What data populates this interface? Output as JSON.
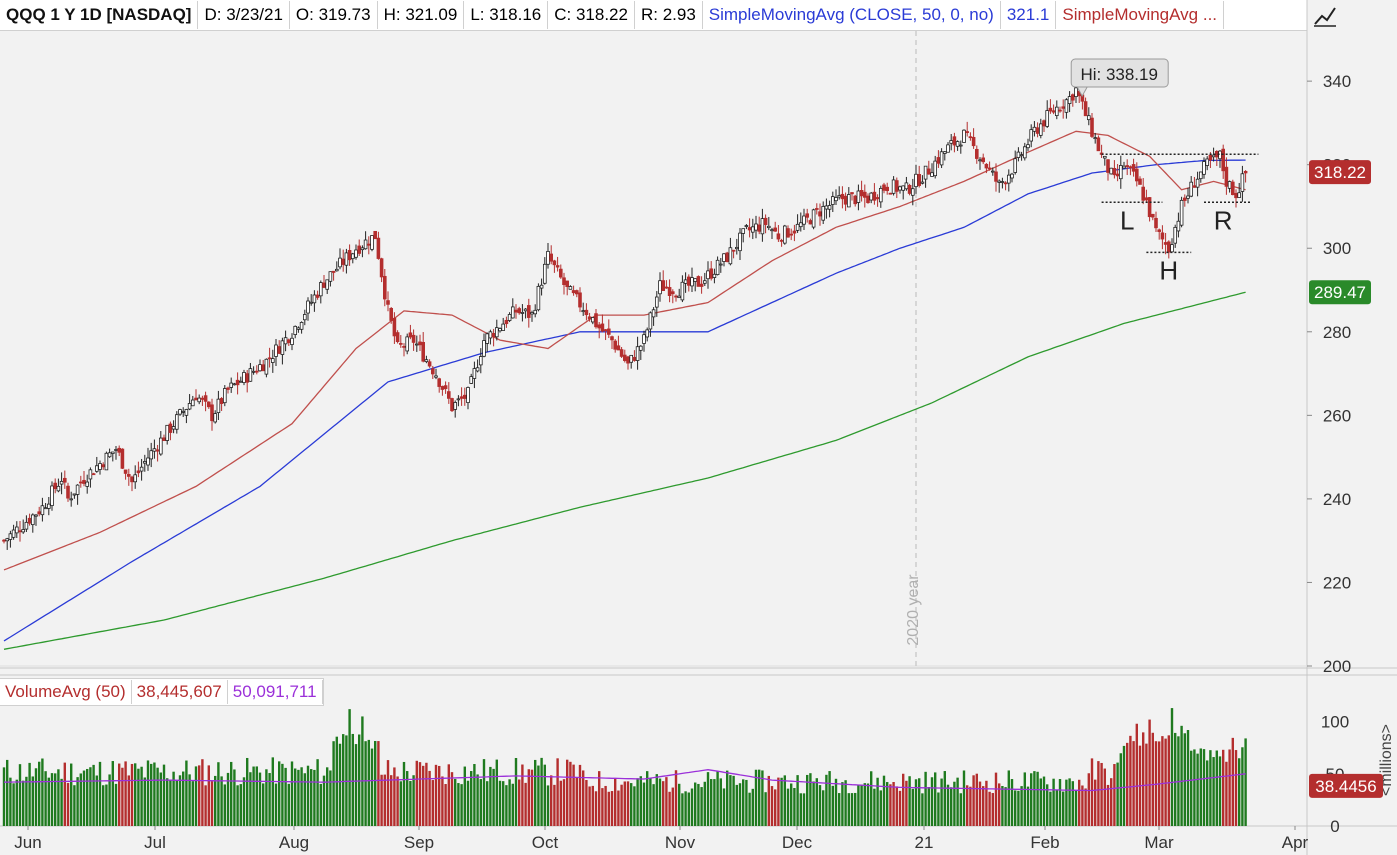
{
  "header": {
    "symbol": "QQQ 1 Y 1D [NASDAQ]",
    "date": "D: 3/23/21",
    "open": "O: 319.73",
    "high": "H: 321.09",
    "low": "L: 318.16",
    "close": "C: 318.22",
    "range": "R: 2.93",
    "sma50_label": "SimpleMovingAvg (CLOSE, 50, 0, no)",
    "sma50_value": "321.1",
    "sma_other_label": "SimpleMovingAvg ..."
  },
  "volume_header": {
    "label": "VolumeAvg (50)",
    "volume": "38,445,607",
    "avg": "50,091,711"
  },
  "colors": {
    "up": "#1f7a1f",
    "down": "#b42e2e",
    "sma_short": "#c0504d",
    "sma50": "#2a3bd6",
    "sma200": "#2e9a2e",
    "vol_avg": "#9b30d9"
  },
  "chart_data": {
    "type": "candlestick",
    "price_axis": {
      "ticks": [
        "340",
        "320",
        "300",
        "280",
        "260",
        "240",
        "220",
        "200"
      ],
      "ylim": [
        200,
        352
      ]
    },
    "volume_axis": {
      "ticks": [
        "100",
        "50",
        "0"
      ],
      "unit": "<millions>",
      "ylim": [
        0,
        115
      ]
    },
    "x_labels": [
      "Jun",
      "Jul",
      "Aug",
      "Sep",
      "Oct",
      "Nov",
      "Dec",
      "21",
      "Feb",
      "Mar",
      "Apr"
    ],
    "year_marker": "2020 year",
    "annotations": {
      "high_label": "Hi: 338.19",
      "high_value": 338.19,
      "pattern_labels": [
        "L",
        "H",
        "R"
      ]
    },
    "price_badges": {
      "last": "318.22",
      "sma200": "289.47",
      "volume": "38.4456"
    },
    "series": [
      {
        "name": "Price",
        "description": "daily candles",
        "anchors": [
          [
            0,
            230
          ],
          [
            12,
            238
          ],
          [
            18,
            245
          ],
          [
            20,
            240
          ],
          [
            25,
            245
          ],
          [
            35,
            252
          ],
          [
            40,
            244
          ],
          [
            45,
            250
          ],
          [
            60,
            265
          ],
          [
            65,
            260
          ],
          [
            70,
            266
          ],
          [
            82,
            273
          ],
          [
            90,
            280
          ],
          [
            100,
            292
          ],
          [
            110,
            300
          ],
          [
            116,
            303
          ],
          [
            120,
            285
          ],
          [
            123,
            276
          ],
          [
            128,
            278
          ],
          [
            135,
            270
          ],
          [
            140,
            262
          ],
          [
            145,
            265
          ],
          [
            150,
            278
          ],
          [
            160,
            285
          ],
          [
            165,
            284
          ],
          [
            170,
            298
          ],
          [
            176,
            290
          ],
          [
            182,
            285
          ],
          [
            186,
            281
          ],
          [
            190,
            278
          ],
          [
            195,
            272
          ],
          [
            200,
            278
          ],
          [
            205,
            291
          ],
          [
            210,
            290
          ],
          [
            218,
            292
          ],
          [
            226,
            298
          ],
          [
            232,
            304
          ],
          [
            238,
            306
          ],
          [
            242,
            303
          ],
          [
            248,
            305
          ],
          [
            255,
            309
          ],
          [
            262,
            312
          ],
          [
            270,
            312
          ],
          [
            276,
            315
          ],
          [
            282,
            314
          ],
          [
            288,
            318
          ],
          [
            295,
            324
          ],
          [
            300,
            327
          ],
          [
            306,
            321
          ],
          [
            311,
            315
          ],
          [
            316,
            320
          ],
          [
            322,
            328
          ],
          [
            328,
            333
          ],
          [
            333,
            336
          ],
          [
            335,
            338
          ],
          [
            338,
            332
          ],
          [
            340,
            328
          ],
          [
            343,
            322
          ],
          [
            347,
            316
          ],
          [
            350,
            320
          ],
          [
            354,
            316
          ],
          [
            357,
            311
          ],
          [
            360,
            304
          ],
          [
            364,
            300
          ],
          [
            368,
            310
          ],
          [
            372,
            316
          ],
          [
            376,
            320
          ],
          [
            380,
            322
          ],
          [
            382,
            316
          ],
          [
            385,
            313
          ],
          [
            388,
            318
          ]
        ]
      },
      {
        "name": "SMA short",
        "anchors": [
          [
            0,
            223
          ],
          [
            30,
            232
          ],
          [
            60,
            243
          ],
          [
            90,
            258
          ],
          [
            110,
            276
          ],
          [
            125,
            285
          ],
          [
            140,
            284
          ],
          [
            155,
            278
          ],
          [
            170,
            276
          ],
          [
            185,
            284
          ],
          [
            200,
            284
          ],
          [
            220,
            287
          ],
          [
            240,
            297
          ],
          [
            260,
            305
          ],
          [
            280,
            310
          ],
          [
            300,
            316
          ],
          [
            320,
            323
          ],
          [
            335,
            328
          ],
          [
            345,
            327
          ],
          [
            358,
            322
          ],
          [
            368,
            314
          ],
          [
            378,
            316
          ],
          [
            388,
            314
          ]
        ]
      },
      {
        "name": "SMA 50",
        "anchors": [
          [
            0,
            206
          ],
          [
            40,
            225
          ],
          [
            80,
            243
          ],
          [
            120,
            268
          ],
          [
            150,
            275
          ],
          [
            180,
            280
          ],
          [
            200,
            280
          ],
          [
            220,
            280
          ],
          [
            240,
            287
          ],
          [
            260,
            294
          ],
          [
            280,
            300
          ],
          [
            300,
            305
          ],
          [
            320,
            313
          ],
          [
            340,
            318
          ],
          [
            360,
            320
          ],
          [
            375,
            321
          ],
          [
            388,
            321.1
          ]
        ]
      },
      {
        "name": "SMA 200",
        "anchors": [
          [
            0,
            204
          ],
          [
            50,
            211
          ],
          [
            100,
            221
          ],
          [
            140,
            230
          ],
          [
            180,
            238
          ],
          [
            220,
            245
          ],
          [
            260,
            254
          ],
          [
            290,
            263
          ],
          [
            320,
            274
          ],
          [
            350,
            282
          ],
          [
            388,
            289.47
          ]
        ]
      },
      {
        "name": "Volume",
        "base": 38,
        "spikes": [
          [
            108,
            112
          ],
          [
            112,
            105
          ],
          [
            354,
            98
          ],
          [
            358,
            102
          ],
          [
            365,
            113
          ],
          [
            368,
            96
          ],
          [
            370,
            92
          ],
          [
            384,
            82
          ]
        ]
      },
      {
        "name": "Volume avg",
        "anchors": [
          [
            0,
            42
          ],
          [
            50,
            44
          ],
          [
            100,
            42
          ],
          [
            130,
            45
          ],
          [
            160,
            48
          ],
          [
            200,
            45
          ],
          [
            220,
            54
          ],
          [
            240,
            44
          ],
          [
            280,
            37
          ],
          [
            320,
            35
          ],
          [
            340,
            34
          ],
          [
            360,
            40
          ],
          [
            388,
            50
          ]
        ]
      }
    ]
  }
}
